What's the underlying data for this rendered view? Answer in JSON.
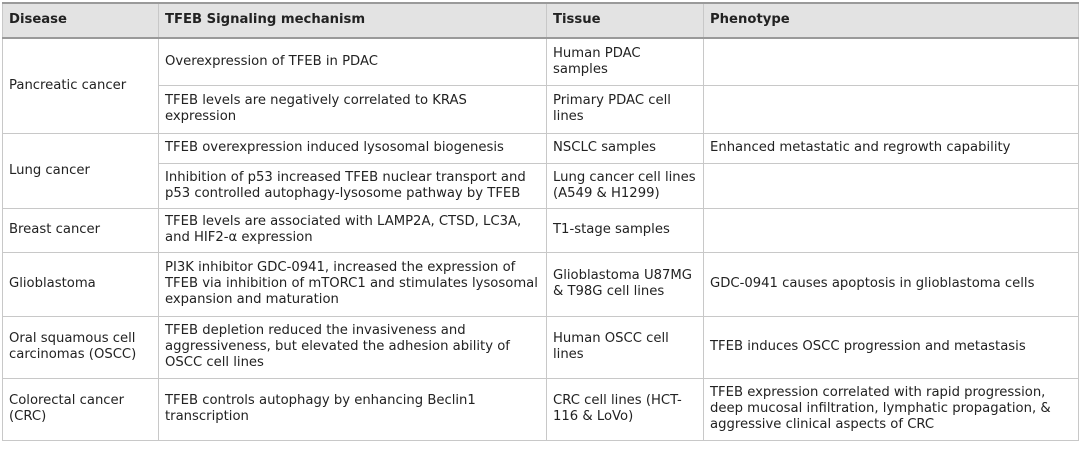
{
  "headers": [
    "Disease",
    "TFEB Signaling mechanism",
    "Tissue",
    "Phenotype"
  ],
  "rows": [
    {
      "disease": "Pancreatic cancer",
      "entries": [
        {
          "mechanism": "Overexpression of TFEB in PDAC",
          "tissue": "Human PDAC samples",
          "phenotype": ""
        },
        {
          "mechanism": "TFEB levels are negatively correlated to KRAS expression",
          "tissue": "Primary PDAC cell lines",
          "phenotype": ""
        }
      ]
    },
    {
      "disease": "Lung cancer",
      "entries": [
        {
          "mechanism": "TFEB overexpression induced lysosomal biogenesis",
          "tissue": "NSCLC samples",
          "phenotype": "Enhanced metastatic and regrowth capability"
        },
        {
          "mechanism": "Inhibition of p53 increased TFEB nuclear transport and p53 controlled autophagy-lysosome pathway by TFEB",
          "tissue": "Lung cancer cell lines (A549 & H1299)",
          "phenotype": ""
        }
      ]
    },
    {
      "disease": "Breast cancer",
      "entries": [
        {
          "mechanism": "TFEB levels are associated with LAMP2A, CTSD, LC3A, and HIF2-α expression",
          "tissue": "T1-stage samples",
          "phenotype": ""
        }
      ]
    },
    {
      "disease": "Glioblastoma",
      "entries": [
        {
          "mechanism": "PI3K inhibitor GDC-0941, increased the expression of TFEB via inhibition of mTORC1 and stimulates lysosomal expansion and maturation",
          "tissue": "Glioblastoma U87MG & T98G cell lines",
          "phenotype": "GDC-0941 causes apoptosis in glioblastoma cells"
        }
      ]
    },
    {
      "disease": "Oral squamous cell carcinomas (OSCC)",
      "entries": [
        {
          "mechanism": "TFEB depletion reduced the invasiveness and aggressiveness, but elevated the adhesion ability of OSCC cell lines",
          "tissue": "Human OSCC cell lines",
          "phenotype": "TFEB induces OSCC progression and metastasis"
        }
      ]
    },
    {
      "disease": "Colorectal cancer (CRC)",
      "entries": [
        {
          "mechanism": "TFEB controls autophagy by enhancing Beclin1 transcription",
          "tissue": "CRC cell lines (HCT-116 & LoVo)",
          "phenotype": "TFEB expression correlated with rapid progression, deep mucosal infiltration, lymphatic propagation, & aggressive clinical aspects of CRC"
        }
      ]
    }
  ]
}
